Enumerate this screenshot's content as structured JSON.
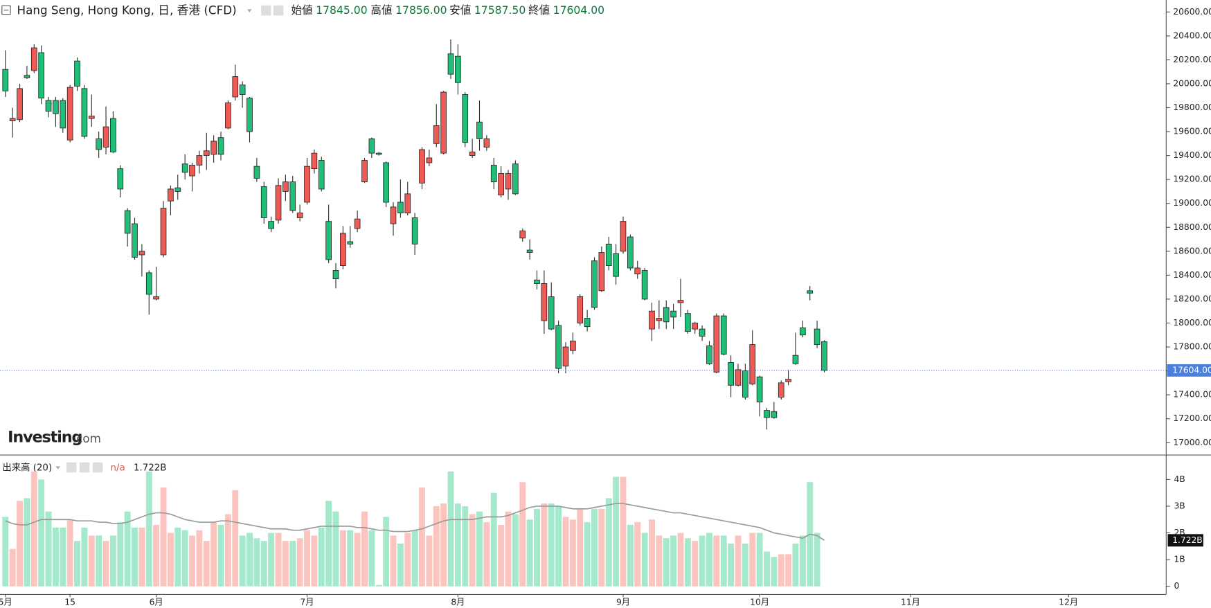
{
  "chart_data": [
    {
      "type": "candlestick",
      "title": "Hang Seng, Hong Kong, 日, 香港 (CFD)",
      "ohlc_header": [
        {
          "label": "始値",
          "value": "17845.00"
        },
        {
          "label": "高値",
          "value": "17856.00"
        },
        {
          "label": "安値",
          "value": "17587.50"
        },
        {
          "label": "終値",
          "value": "17604.00"
        }
      ],
      "watermark": {
        "brand": "Investing",
        "suffix": ".com"
      },
      "open": [
        20120,
        19690,
        19700,
        20070,
        20110,
        20260,
        19860,
        19860,
        19860,
        19530,
        20190,
        19960,
        19710,
        19540,
        19470,
        19710,
        19290,
        18940,
        18830,
        18570,
        18420,
        18200,
        18570,
        19020,
        19130,
        19330,
        19230,
        19320,
        19400,
        19410,
        19550,
        19630,
        19890,
        19990,
        19880,
        19310,
        19140,
        18850,
        18860,
        19100,
        19180,
        18880,
        19010,
        19290,
        19360,
        18850,
        18440,
        18480,
        18680,
        18790,
        19180,
        19540,
        19420,
        19340,
        18830,
        19010,
        18920,
        18880,
        19170,
        19340,
        19500,
        19420,
        20250,
        20230,
        19910,
        19400,
        19680,
        19470,
        19320,
        19070,
        19120,
        19330,
        18710,
        18610,
        18360,
        18020,
        18220,
        17980,
        17640,
        17770,
        18000,
        18040,
        18520,
        18270,
        18660,
        18580,
        18600,
        18720,
        18410,
        18440,
        17950,
        18020,
        18130,
        18100,
        18170,
        18080,
        17950,
        17950,
        17810,
        17590,
        18060,
        17670,
        17480,
        17600,
        17490,
        17550,
        17270,
        17260,
        17380,
        17510,
        17730,
        17960,
        18270,
        17950,
        17845
      ],
      "high": [
        20280,
        19800,
        20000,
        20150,
        20330,
        20320,
        19890,
        19890,
        19880,
        19990,
        20220,
        19990,
        19910,
        19600,
        19810,
        19770,
        19320,
        18960,
        18880,
        18660,
        18440,
        18470,
        19020,
        19150,
        19240,
        19410,
        19340,
        19440,
        19590,
        19570,
        19600,
        19860,
        20160,
        20020,
        19890,
        19380,
        19180,
        18890,
        19210,
        19240,
        19230,
        18990,
        19380,
        19450,
        19390,
        18990,
        18500,
        18810,
        18810,
        18940,
        19380,
        19550,
        19430,
        19350,
        19010,
        19200,
        19180,
        18920,
        19470,
        19450,
        19830,
        19940,
        20370,
        20330,
        19930,
        19540,
        19860,
        19570,
        19380,
        19310,
        19280,
        19360,
        18790,
        18700,
        18440,
        18440,
        18340,
        18020,
        17840,
        17920,
        18240,
        18110,
        18550,
        18640,
        18720,
        18660,
        18890,
        18740,
        18520,
        18460,
        18170,
        18190,
        18190,
        18160,
        18370,
        18110,
        18010,
        17980,
        17850,
        18080,
        18080,
        17730,
        17660,
        17660,
        17940,
        17560,
        17290,
        17340,
        17520,
        17610,
        17920,
        18020,
        18310,
        18020,
        17856
      ],
      "low": [
        19890,
        19550,
        19680,
        20040,
        20090,
        19830,
        19720,
        19640,
        19590,
        19510,
        19940,
        19540,
        19640,
        19380,
        19410,
        19420,
        19050,
        18640,
        18530,
        18390,
        18070,
        18190,
        18550,
        18900,
        19030,
        19200,
        19100,
        19250,
        19280,
        19340,
        19360,
        19620,
        19860,
        19800,
        19510,
        19180,
        18830,
        18760,
        18830,
        19020,
        18920,
        18850,
        18990,
        19250,
        19100,
        18500,
        18290,
        18450,
        18630,
        18760,
        19170,
        19380,
        19400,
        18970,
        18730,
        18880,
        18900,
        18570,
        19120,
        19310,
        19470,
        19410,
        20040,
        19910,
        19470,
        19380,
        19440,
        19440,
        19120,
        19050,
        19030,
        19070,
        18680,
        18530,
        18280,
        17910,
        17940,
        17580,
        17580,
        17740,
        17980,
        17930,
        18110,
        18260,
        18440,
        18320,
        18580,
        18440,
        18370,
        18190,
        17850,
        17950,
        17950,
        17950,
        18050,
        17910,
        17910,
        17850,
        17650,
        17580,
        17730,
        17380,
        17470,
        17360,
        17480,
        17220,
        17110,
        17200,
        17360,
        17480,
        17650,
        17880,
        18190,
        17790,
        17587.5
      ],
      "close": [
        19940,
        19710,
        19960,
        20050,
        20300,
        19880,
        19770,
        19750,
        19630,
        19970,
        19980,
        19560,
        19730,
        19450,
        19640,
        19430,
        19120,
        18750,
        18550,
        18600,
        18240,
        18220,
        18960,
        19120,
        19100,
        19260,
        19320,
        19400,
        19440,
        19520,
        19410,
        19840,
        20060,
        19910,
        19600,
        19210,
        18880,
        18790,
        19150,
        19180,
        18940,
        18920,
        19310,
        19420,
        19120,
        18530,
        18370,
        18750,
        18660,
        18870,
        19360,
        19420,
        19410,
        19010,
        18970,
        18920,
        19080,
        18660,
        19450,
        19380,
        19650,
        19930,
        20080,
        20010,
        19510,
        19430,
        19540,
        19540,
        19180,
        19250,
        19250,
        19080,
        18770,
        18590,
        18330,
        18330,
        17950,
        17620,
        17800,
        17850,
        18220,
        17970,
        18130,
        18590,
        18480,
        18390,
        18850,
        18460,
        18460,
        18200,
        18100,
        18040,
        18010,
        18050,
        18190,
        17930,
        18000,
        17890,
        17660,
        18060,
        17740,
        17480,
        17610,
        17380,
        17820,
        17340,
        17210,
        17210,
        17500,
        17530,
        17660,
        17900,
        18250,
        17820,
        17604
      ],
      "up_color": "#ef5a55",
      "down_color": "#1fbf78",
      "wick_color": "#2b2b2b",
      "last_label": "17604.00",
      "last_color": "#4a7fdd",
      "ylim": [
        16900,
        20700
      ],
      "yticks": [
        {
          "value": 17000,
          "label": "17000.00"
        },
        {
          "value": 17200,
          "label": "17200.00"
        },
        {
          "value": 17400,
          "label": "17400.00"
        },
        {
          "value": 17600,
          "label": "17600.00"
        },
        {
          "value": 17800,
          "label": "17800.00"
        },
        {
          "value": 18000,
          "label": "18000.00"
        },
        {
          "value": 18200,
          "label": "18200.00"
        },
        {
          "value": 18400,
          "label": "18400.00"
        },
        {
          "value": 18600,
          "label": "18600.00"
        },
        {
          "value": 18800,
          "label": "18800.00"
        },
        {
          "value": 19000,
          "label": "19000.00"
        },
        {
          "value": 19200,
          "label": "19200.00"
        },
        {
          "value": 19400,
          "label": "19400.00"
        },
        {
          "value": 19600,
          "label": "19600.00"
        },
        {
          "value": 19800,
          "label": "19800.00"
        },
        {
          "value": 20000,
          "label": "20000.00"
        },
        {
          "value": 20200,
          "label": "20200.00"
        },
        {
          "value": 20400,
          "label": "20400.00"
        },
        {
          "value": 20600,
          "label": "20600.00"
        }
      ],
      "xlim": [
        -0.75,
        161.6
      ],
      "xticks": [
        {
          "value": 0,
          "label": "5月"
        },
        {
          "value": 9,
          "label": "15"
        },
        {
          "value": 21,
          "label": "6月"
        },
        {
          "value": 42,
          "label": "7月"
        },
        {
          "value": 63,
          "label": "8月"
        },
        {
          "value": 86,
          "label": "9月"
        },
        {
          "value": 105,
          "label": "10月"
        },
        {
          "value": 126,
          "label": "11月"
        },
        {
          "value": 148,
          "label": "12月"
        }
      ]
    },
    {
      "type": "volume",
      "title": "出来高 (20)",
      "current_label": "n/a",
      "ma_label": "1.722B",
      "values": [
        2.6,
        1.4,
        3.2,
        3.3,
        4.3,
        4.0,
        2.8,
        2.2,
        2.2,
        2.5,
        1.7,
        2.2,
        1.9,
        1.9,
        1.7,
        1.9,
        2.4,
        2.8,
        2.2,
        2.2,
        4.3,
        2.3,
        3.7,
        2.0,
        2.2,
        2.1,
        1.9,
        2.1,
        1.7,
        2.4,
        2.3,
        2.7,
        3.6,
        1.9,
        2.0,
        1.8,
        1.7,
        2.0,
        2.0,
        1.7,
        1.7,
        1.8,
        2.1,
        1.9,
        2.2,
        3.2,
        2.8,
        2.1,
        2.1,
        2.0,
        2.8,
        2.1,
        0.05,
        2.6,
        1.9,
        1.6,
        2.0,
        2.1,
        3.7,
        1.9,
        3.0,
        3.1,
        4.3,
        3.1,
        3.0,
        2.7,
        2.8,
        2.4,
        3.5,
        2.3,
        2.8,
        2.7,
        3.9,
        2.5,
        2.9,
        3.1,
        3.1,
        3.0,
        2.6,
        2.5,
        2.9,
        2.4,
        2.9,
        2.9,
        3.3,
        4.1,
        4.1,
        2.3,
        2.4,
        2.0,
        2.5,
        1.9,
        1.8,
        1.9,
        2.0,
        1.8,
        1.7,
        1.9,
        2.0,
        1.9,
        1.9,
        1.6,
        1.9,
        1.6,
        2.0,
        2.0,
        1.3,
        1.1,
        1.2,
        1.2,
        1.6,
        1.9,
        3.9,
        2.0,
        null
      ],
      "up_color": "#fcc4bf",
      "down_color": "#a5e9cc",
      "ma": {
        "color": "#9a9a9a",
        "values": [
          2.45,
          2.35,
          2.3,
          2.3,
          2.4,
          2.5,
          2.5,
          2.5,
          2.5,
          2.5,
          2.45,
          2.45,
          2.45,
          2.4,
          2.4,
          2.35,
          2.35,
          2.4,
          2.5,
          2.6,
          2.7,
          2.75,
          2.75,
          2.7,
          2.6,
          2.5,
          2.45,
          2.4,
          2.4,
          2.4,
          2.45,
          2.45,
          2.4,
          2.35,
          2.3,
          2.25,
          2.2,
          2.15,
          2.15,
          2.15,
          2.1,
          2.1,
          2.15,
          2.2,
          2.25,
          2.25,
          2.25,
          2.25,
          2.25,
          2.2,
          2.2,
          2.15,
          2.1,
          2.1,
          2.05,
          2.05,
          2.05,
          2.1,
          2.15,
          2.25,
          2.35,
          2.45,
          2.5,
          2.5,
          2.5,
          2.5,
          2.55,
          2.6,
          2.6,
          2.6,
          2.65,
          2.75,
          2.85,
          2.95,
          3.0,
          3.0,
          3.0,
          3.0,
          2.95,
          2.9,
          2.9,
          2.9,
          2.95,
          3.0,
          3.05,
          3.1,
          3.1,
          3.05,
          3.0,
          2.95,
          2.9,
          2.85,
          2.8,
          2.75,
          2.75,
          2.7,
          2.65,
          2.6,
          2.55,
          2.5,
          2.45,
          2.4,
          2.35,
          2.3,
          2.25,
          2.2,
          2.1,
          2.0,
          1.95,
          1.9,
          1.85,
          1.8,
          1.95,
          1.9,
          1.722
        ]
      },
      "ylim": [
        -0.29,
        4.9
      ],
      "yticks": [
        0,
        {
          "value": 1,
          "label": "1B"
        },
        {
          "value": 2,
          "label": "2B"
        },
        {
          "value": 3,
          "label": "3B"
        },
        {
          "value": 4,
          "label": "4B"
        }
      ]
    }
  ]
}
